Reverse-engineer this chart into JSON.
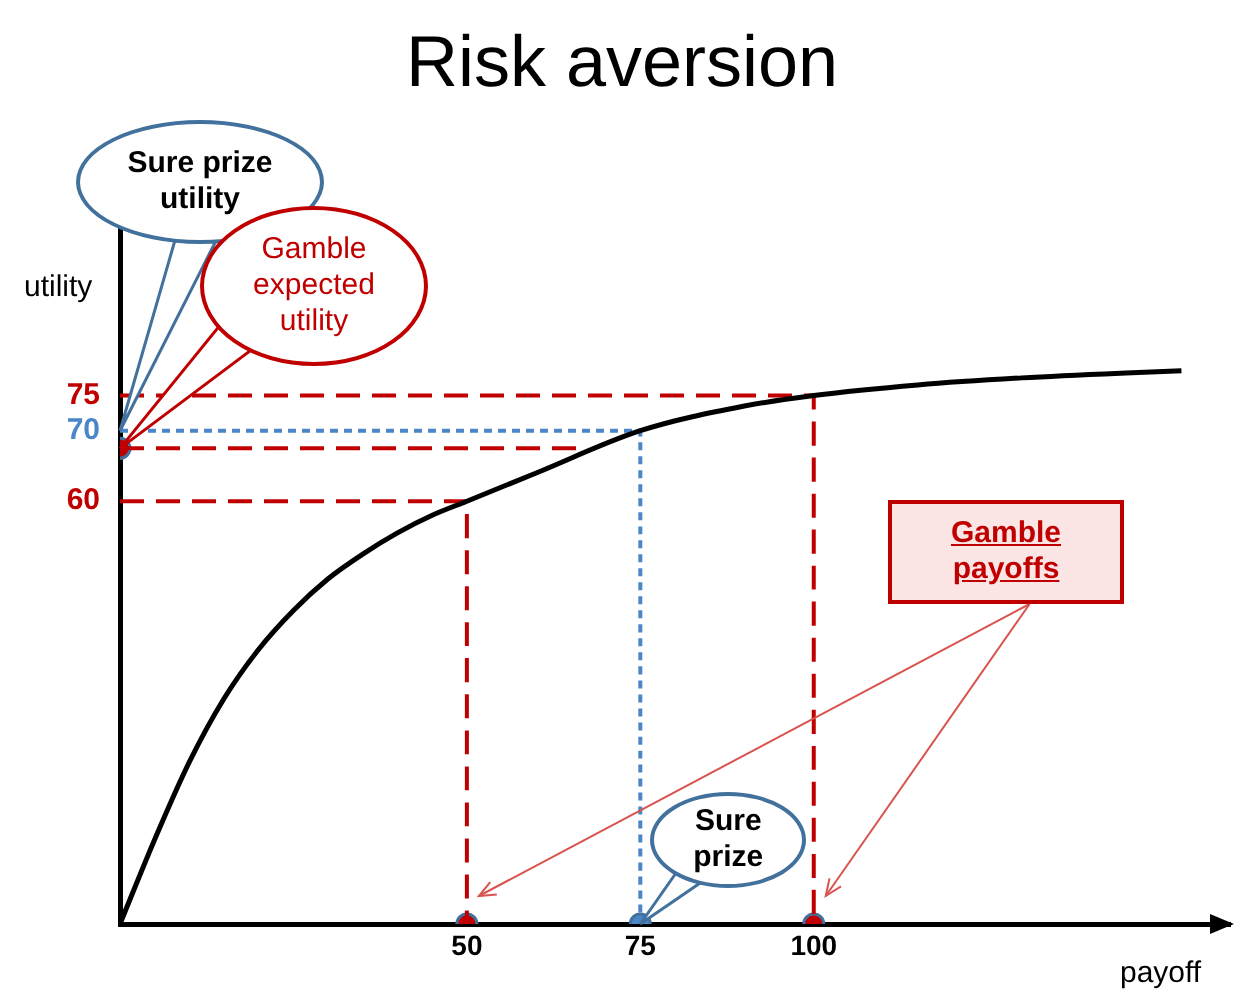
{
  "chart_data": {
    "type": "line",
    "title": "Risk aversion",
    "xlabel": "payoff",
    "ylabel": "utility",
    "xlim": [
      0,
      160
    ],
    "xticks": [
      50,
      75,
      100
    ],
    "ylim": [
      0,
      107
    ],
    "yticks": [
      60,
      70,
      75
    ],
    "series": [
      {
        "color": "#000000",
        "x": [
          0,
          5,
          10,
          15,
          20,
          25,
          30,
          35,
          40,
          45,
          50,
          60,
          75,
          90,
          100,
          115,
          130,
          145,
          153
        ],
        "values": [
          0,
          12,
          23,
          32,
          39,
          44.5,
          49,
          52.5,
          55.5,
          58,
          60,
          64,
          70,
          73.5,
          75,
          76.5,
          77.5,
          78.2,
          78.5
        ],
        "line_style": "solid"
      },
      {
        "color": "#c00000",
        "x": [
          0,
          50,
          50
        ],
        "values": [
          60,
          60,
          0
        ],
        "line_style": "dashed"
      },
      {
        "color": "#4a86c8",
        "x": [
          0,
          75,
          75
        ],
        "values": [
          70,
          70,
          0
        ],
        "line_style": "dotted"
      },
      {
        "color": "#c00000",
        "x": [
          0,
          100,
          100
        ],
        "values": [
          75,
          75,
          0
        ],
        "line_style": "dashed"
      },
      {
        "color": "#c00000",
        "x": [
          0,
          66
        ],
        "values": [
          67.5,
          67.5
        ],
        "line_style": "dashed"
      },
      {
        "type": "scatter",
        "x": [
          0,
          50,
          75,
          100
        ],
        "values": [
          67.5,
          0,
          0,
          0
        ],
        "colors": [
          "#c00000",
          "#c00000",
          "#4a86c8",
          "#c00000"
        ],
        "marker": "circle"
      }
    ],
    "annotations": [
      "Sure prize utility",
      "Gamble expected utility",
      "Sure prize",
      "Gamble payoffs"
    ],
    "grid": false,
    "legend": false
  }
}
